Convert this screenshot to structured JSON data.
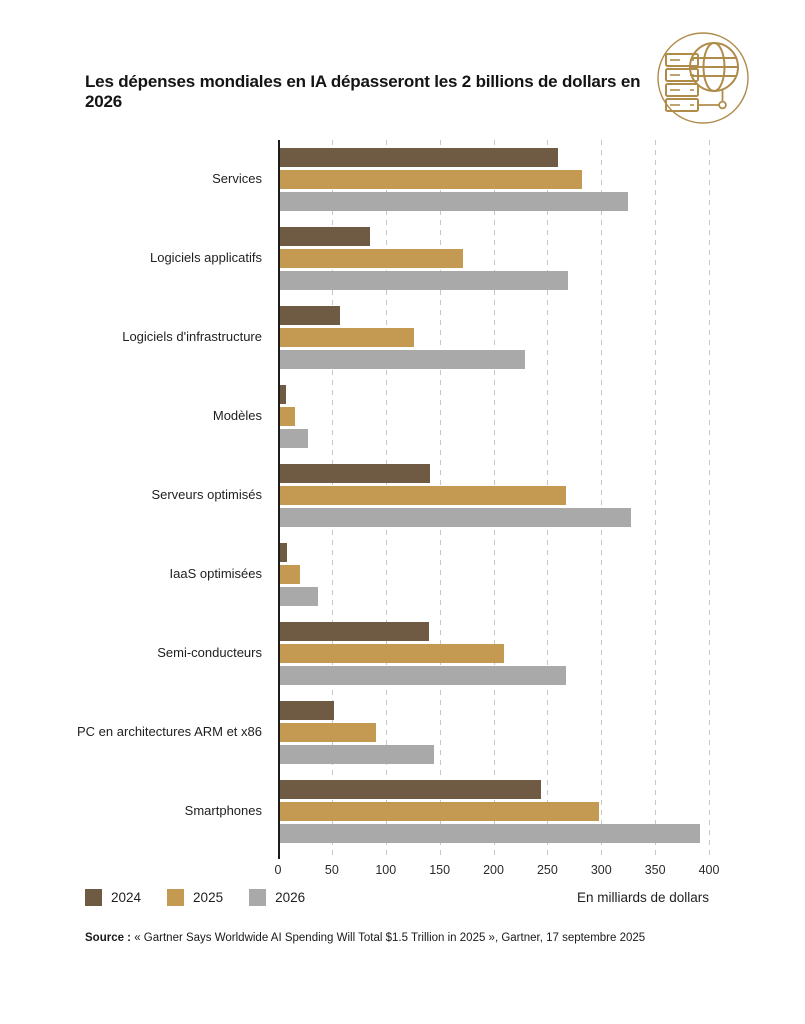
{
  "page": {
    "title": "Les dépenses mondiales en IA dépasseront les 2 billions de dollars en 2026"
  },
  "logo": {
    "name": "globe-and-servers-logo",
    "color": "#b08c4a"
  },
  "chart_data": {
    "type": "bar",
    "orientation": "horizontal",
    "title": "Les dépenses mondiales en IA dépasseront les 2 billions de dollars en 2026",
    "categories": [
      "Services",
      "Logiciels applicatifs",
      "Logiciels d'infrastructure",
      "Modèles",
      "Serveurs optimisés",
      "IaaS optimisées",
      "Semi-conducteurs",
      "PC en architectures ARM et x86",
      "Smartphones"
    ],
    "series": [
      {
        "name": "2024",
        "color": "#6f5b44",
        "values": [
          260,
          85,
          58,
          7,
          141,
          8,
          140,
          52,
          244
        ]
      },
      {
        "name": "2025",
        "color": "#c49a52",
        "values": [
          282,
          172,
          126,
          16,
          267,
          20,
          210,
          91,
          298
        ]
      },
      {
        "name": "2026",
        "color": "#a9a9a9",
        "values": [
          325,
          269,
          229,
          28,
          328,
          37,
          267,
          145,
          392
        ]
      }
    ],
    "xlabel": "En milliards de dollars",
    "xlim": [
      0,
      400
    ],
    "xticks": [
      0,
      50,
      100,
      150,
      200,
      250,
      300,
      350,
      400
    ],
    "grid": "vertical-dashed",
    "legend_position": "bottom-left"
  },
  "axis": {
    "unit_label": "En milliards de dollars"
  },
  "source": {
    "prefix": "Source :",
    "text": " « Gartner Says Worldwide AI Spending Will Total $1.5 Trillion in 2025 », Gartner, 17 septembre 2025"
  }
}
